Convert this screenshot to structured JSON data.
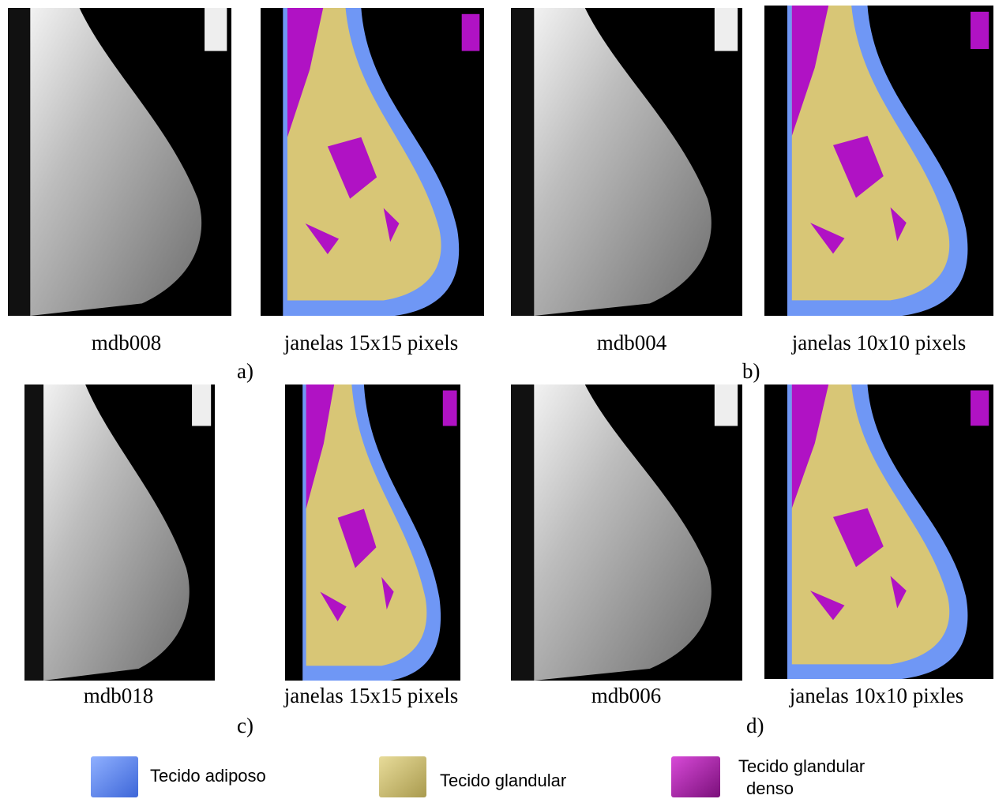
{
  "panels": [
    {
      "caption": "mdb008"
    },
    {
      "caption": "janelas 15x15 pixels"
    },
    {
      "caption": "mdb004"
    },
    {
      "caption": "janelas 10x10 pixels"
    },
    {
      "caption": "mdb018"
    },
    {
      "caption": "janelas 15x15 pixels"
    },
    {
      "caption": "mdb006"
    },
    {
      "caption": "janelas 10x10 pixles"
    }
  ],
  "labels": [
    "a)",
    "b)",
    "c)",
    "d)"
  ],
  "legend": [
    {
      "label": "Tecido adiposo"
    },
    {
      "label": "Tecido glandular"
    },
    {
      "label_lines": [
        "Tecido glandular",
        "denso"
      ]
    }
  ]
}
